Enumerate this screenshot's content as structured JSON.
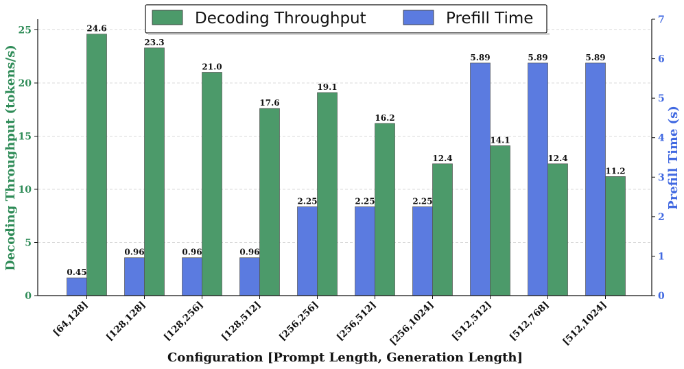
{
  "chart_data": {
    "type": "bar",
    "categories": [
      "[64,128]",
      "[128,128]",
      "[128,256]",
      "[128,512]",
      "[256,256]",
      "[256,512]",
      "[256,1024]",
      "[512,512]",
      "[512,768]",
      "[512,1024]"
    ],
    "series": [
      {
        "name": "Decoding Throughput",
        "axis": "left",
        "color": "#4c9a6a",
        "values": [
          24.6,
          23.3,
          21.0,
          17.6,
          19.1,
          16.2,
          12.4,
          14.1,
          12.4,
          11.2
        ],
        "labels": [
          "24.6",
          "23.3",
          "21.0",
          "17.6",
          "19.1",
          "16.2",
          "12.4",
          "14.1",
          "12.4",
          "11.2"
        ]
      },
      {
        "name": "Prefill Time",
        "axis": "right",
        "color": "#5b7be0",
        "values": [
          0.45,
          0.96,
          0.96,
          0.96,
          2.25,
          2.25,
          2.25,
          5.89,
          5.89,
          5.89
        ],
        "labels": [
          "0.45",
          "0.96",
          "0.96",
          "0.96",
          "2.25",
          "2.25",
          "2.25",
          "5.89",
          "5.89",
          "5.89"
        ]
      }
    ],
    "xlabel": "Configuration [Prompt Length, Generation Length]",
    "ylabel_left": "Decoding Throughput (tokens/s)",
    "ylabel_right": "Prefill Time (s)",
    "ylim_left": [
      0,
      26
    ],
    "ylim_right": [
      0,
      7
    ],
    "yticks_left": [
      "0",
      "5",
      "10",
      "15",
      "20",
      "25"
    ],
    "yticks_right": [
      "0",
      "1",
      "2",
      "3",
      "4",
      "5",
      "6",
      "7"
    ],
    "left_axis_color": "#2e8b57",
    "right_axis_color": "#4169e1",
    "grid": true,
    "legend_position": "top-center"
  }
}
